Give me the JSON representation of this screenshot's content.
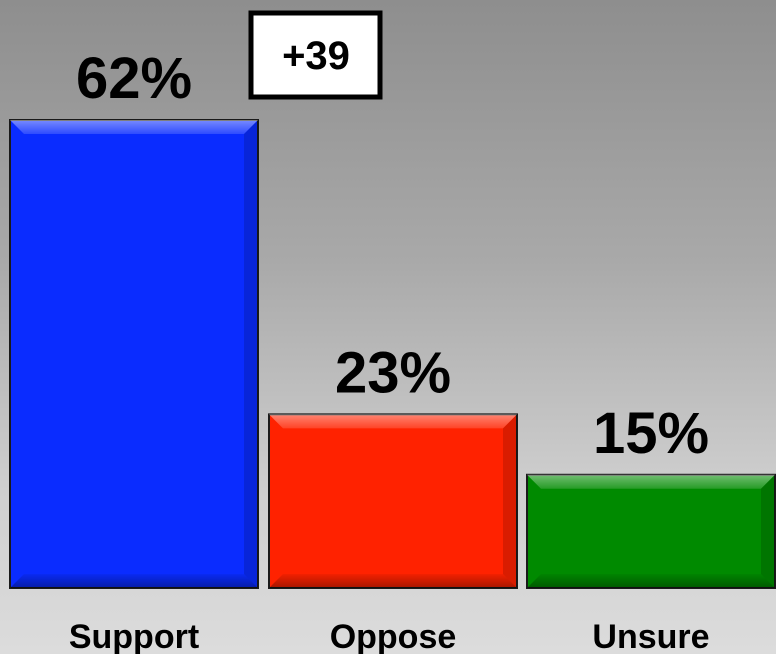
{
  "chart_data": {
    "type": "bar",
    "categories": [
      "Support",
      "Oppose",
      "Unsure"
    ],
    "values": [
      62,
      23,
      15
    ],
    "value_labels": [
      "62%",
      "23%",
      "15%"
    ],
    "colors": [
      "#0a2cff",
      "#ff2200",
      "#008a00"
    ],
    "ylim": [
      0,
      62
    ],
    "grid": false,
    "annotations": [
      {
        "text": "+39",
        "description": "margin box"
      }
    ]
  }
}
